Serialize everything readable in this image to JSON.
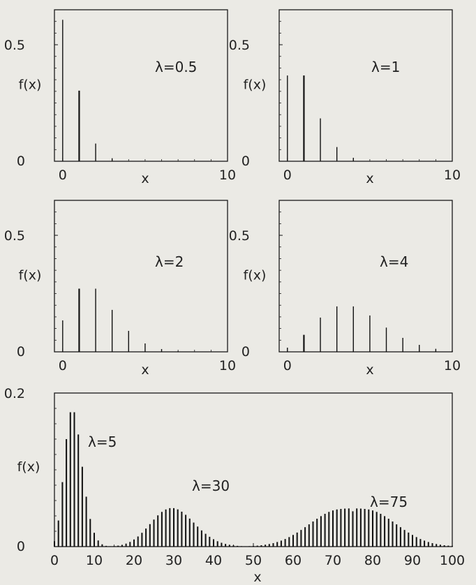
{
  "chart_data": [
    {
      "type": "bar",
      "subtype": "stem",
      "annotation": "λ=0.5",
      "xlabel": "x",
      "ylabel": "f(x)",
      "xlim": [
        -0.5,
        10
      ],
      "ylim": [
        0,
        0.65
      ],
      "xticks": [
        0,
        10
      ],
      "yticks": [
        0,
        0.5
      ],
      "x": [
        0,
        1,
        2,
        3
      ],
      "values": [
        0.607,
        0.303,
        0.076,
        0.013
      ]
    },
    {
      "type": "bar",
      "subtype": "stem",
      "annotation": "λ=1",
      "xlabel": "x",
      "ylabel": "f(x)",
      "xlim": [
        -0.5,
        10
      ],
      "ylim": [
        0,
        0.65
      ],
      "xticks": [
        0,
        10
      ],
      "yticks": [
        0,
        0.5
      ],
      "x": [
        0,
        1,
        2,
        3,
        4
      ],
      "values": [
        0.368,
        0.368,
        0.184,
        0.061,
        0.015
      ]
    },
    {
      "type": "bar",
      "subtype": "stem",
      "annotation": "λ=2",
      "xlabel": "x",
      "ylabel": "f(x)",
      "xlim": [
        -0.5,
        10
      ],
      "ylim": [
        0,
        0.65
      ],
      "xticks": [
        0,
        10
      ],
      "yticks": [
        0,
        0.5
      ],
      "x": [
        0,
        1,
        2,
        3,
        4,
        5,
        6,
        7
      ],
      "values": [
        0.135,
        0.271,
        0.271,
        0.18,
        0.09,
        0.036,
        0.012,
        0.003
      ]
    },
    {
      "type": "bar",
      "subtype": "stem",
      "annotation": "λ=4",
      "xlabel": "x",
      "ylabel": "f(x)",
      "xlim": [
        -0.5,
        10
      ],
      "ylim": [
        0,
        0.65
      ],
      "xticks": [
        0,
        10
      ],
      "yticks": [
        0,
        0.5
      ],
      "x": [
        0,
        1,
        2,
        3,
        4,
        5,
        6,
        7,
        8,
        9,
        10
      ],
      "values": [
        0.018,
        0.073,
        0.147,
        0.195,
        0.195,
        0.156,
        0.104,
        0.06,
        0.03,
        0.013,
        0.005
      ]
    },
    {
      "type": "bar",
      "subtype": "stem",
      "xlabel": "x",
      "ylabel": "f(x)",
      "xlim": [
        0,
        100
      ],
      "ylim": [
        0,
        0.2
      ],
      "xticks": [
        0,
        10,
        20,
        30,
        40,
        50,
        60,
        70,
        80,
        90,
        100
      ],
      "yticks": [
        0,
        0.2
      ],
      "series": [
        {
          "name": "λ=5",
          "x": [
            0,
            1,
            2,
            3,
            4,
            5,
            6,
            7,
            8,
            9,
            10,
            11,
            12,
            13,
            14,
            15
          ],
          "values": [
            0.007,
            0.034,
            0.084,
            0.14,
            0.175,
            0.175,
            0.146,
            0.104,
            0.065,
            0.036,
            0.018,
            0.008,
            0.003,
            0.001,
            0.0005,
            0.0002
          ]
        },
        {
          "name": "λ=30",
          "x": [
            13,
            14,
            15,
            16,
            17,
            18,
            19,
            20,
            21,
            22,
            23,
            24,
            25,
            26,
            27,
            28,
            29,
            30,
            31,
            32,
            33,
            34,
            35,
            36,
            37,
            38,
            39,
            40,
            41,
            42,
            43,
            44,
            45,
            46,
            47,
            48,
            49,
            50
          ],
          "values": [
            0.0001,
            0.0003,
            0.0007,
            0.0013,
            0.0023,
            0.0039,
            0.0061,
            0.0093,
            0.0132,
            0.018,
            0.0235,
            0.0293,
            0.0352,
            0.0407,
            0.0452,
            0.0484,
            0.0501,
            0.0501,
            0.0485,
            0.0455,
            0.0414,
            0.0365,
            0.0313,
            0.0261,
            0.0211,
            0.0167,
            0.0128,
            0.0096,
            0.007,
            0.005,
            0.0035,
            0.0024,
            0.0016,
            0.001,
            0.0006,
            0.0004,
            0.0002,
            0.0001
          ]
        },
        {
          "name": "λ=75",
          "x": [
            45,
            46,
            47,
            48,
            49,
            50,
            51,
            52,
            53,
            54,
            55,
            56,
            57,
            58,
            59,
            60,
            61,
            62,
            63,
            64,
            65,
            66,
            67,
            68,
            69,
            70,
            71,
            72,
            73,
            74,
            75,
            76,
            77,
            78,
            79,
            80,
            81,
            82,
            83,
            84,
            85,
            86,
            87,
            88,
            89,
            90,
            91,
            92,
            93,
            94,
            95,
            96,
            97,
            98,
            99,
            100
          ],
          "values": [
            0.0001,
            0.0002,
            0.0003,
            0.0004,
            0.0006,
            0.0009,
            0.0013,
            0.0018,
            0.0025,
            0.0034,
            0.0045,
            0.006,
            0.0078,
            0.0099,
            0.0124,
            0.0152,
            0.0183,
            0.0217,
            0.0253,
            0.029,
            0.0327,
            0.0363,
            0.0397,
            0.0427,
            0.0452,
            0.0471,
            0.0484,
            0.0491,
            0.0495,
            0.0497,
            0.046,
            0.0497,
            0.0495,
            0.0491,
            0.0484,
            0.0471,
            0.0452,
            0.0427,
            0.0397,
            0.0363,
            0.0327,
            0.029,
            0.0253,
            0.0217,
            0.0183,
            0.0152,
            0.0124,
            0.0099,
            0.0078,
            0.006,
            0.0045,
            0.0034,
            0.0025,
            0.0018,
            0.0013,
            0.0009
          ]
        }
      ]
    }
  ]
}
